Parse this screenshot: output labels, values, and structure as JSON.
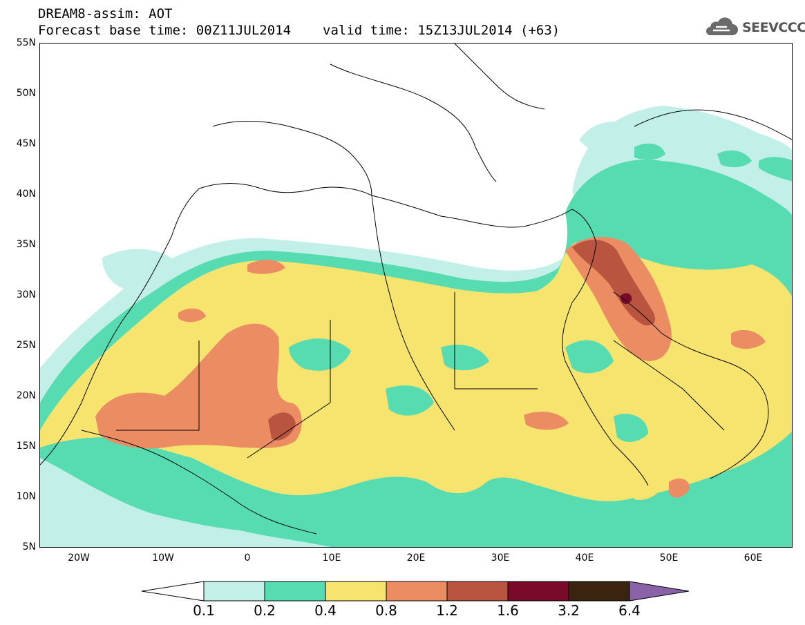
{
  "header": {
    "title": "DREAM8-assim: AOT",
    "base_time": "Forecast base time: 00Z11JUL2014",
    "valid_time": "valid time: 15Z13JUL2014 (+63)"
  },
  "logo": {
    "text": "SEEVCCC",
    "icon": "cloud-icon"
  },
  "map": {
    "lat_labels": [
      "55N",
      "50N",
      "45N",
      "40N",
      "35N",
      "30N",
      "25N",
      "20N",
      "15N",
      "10N",
      "5N"
    ],
    "lon_labels": [
      "20W",
      "10W",
      "0",
      "10E",
      "20E",
      "30E",
      "40E",
      "50E",
      "60E"
    ]
  },
  "colorbar": {
    "labels": [
      "0.1",
      "0.2",
      "0.4",
      "0.8",
      "1.2",
      "1.6",
      "3.2",
      "6.4"
    ],
    "colors": {
      "under": "#ffffff",
      "c1": "#c2f0e9",
      "c2": "#57dcb2",
      "c3": "#f7e46e",
      "c4": "#ec8c63",
      "c5": "#b9553f",
      "c6": "#7a0a2a",
      "c7": "#3a2410",
      "over": "#8a62a8"
    }
  }
}
